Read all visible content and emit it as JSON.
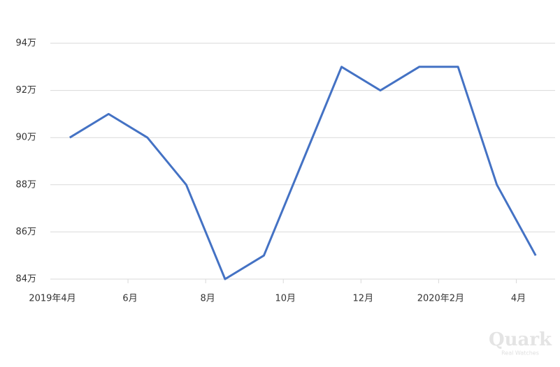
{
  "chart_data": {
    "type": "line",
    "categories": [
      "2019年4月",
      null,
      "6月",
      null,
      "8月",
      null,
      "10月",
      null,
      "12月",
      null,
      "2020年2月",
      null,
      "4月"
    ],
    "series": [
      {
        "name": null,
        "color": "#4472c4",
        "values": [
          90,
          91,
          90,
          88,
          84,
          85,
          89,
          93,
          92,
          93,
          93,
          88,
          85
        ]
      }
    ],
    "ylim": [
      84,
      94
    ],
    "yticks": [
      {
        "value": 84,
        "label": "84万"
      },
      {
        "value": 86,
        "label": "86万"
      },
      {
        "value": 88,
        "label": "88万"
      },
      {
        "value": 90,
        "label": "90万"
      },
      {
        "value": 92,
        "label": "92万"
      },
      {
        "value": 94,
        "label": "94万"
      }
    ],
    "grid": true
  },
  "watermark": {
    "title": "Quark",
    "subtitle": "Real Watches"
  }
}
